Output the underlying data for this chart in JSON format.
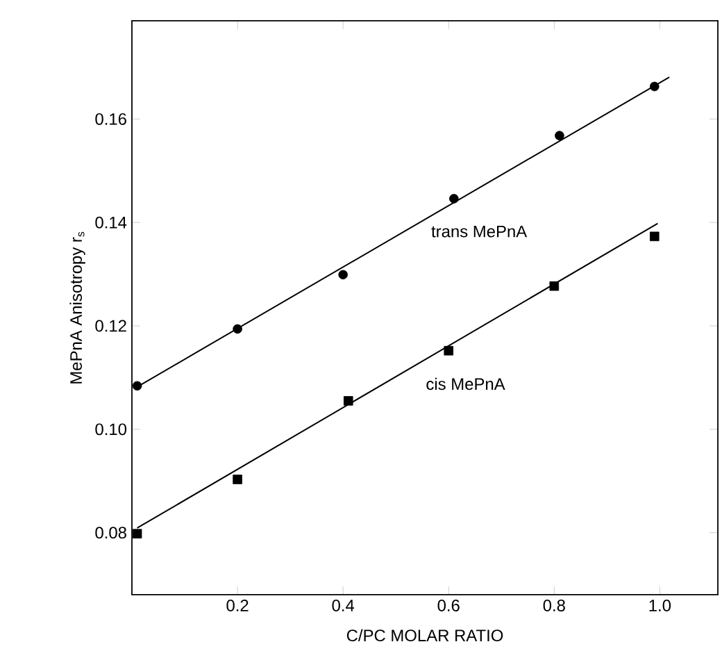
{
  "chart_data": {
    "type": "scatter",
    "xlabel": "C/PC MOLAR RATIO",
    "ylabel": "MePnA Anisotropy r$_{s}$",
    "xlim": [
      0,
      1.11
    ],
    "ylim": [
      0.068,
      0.179
    ],
    "xticks": [
      {
        "value": 0,
        "label": null
      },
      0.2,
      0.4,
      0.6,
      0.8,
      {
        "value": 1.0,
        "label": "1.0"
      }
    ],
    "yticks": [
      0.08,
      {
        "value": 0.1,
        "label": "0.10"
      },
      0.12,
      0.14,
      0.16
    ],
    "grid": false,
    "series": [
      {
        "name": "trans MePnA",
        "type": "scatter",
        "marker": "circle",
        "color": "#000000",
        "x": [
          0.01,
          0.2,
          0.4,
          0.61,
          0.81,
          0.99
        ],
        "values": [
          0.1084,
          0.1194,
          0.1299,
          0.1446,
          0.1568,
          0.1663
        ]
      },
      {
        "type": "line",
        "marker": "none",
        "color": "#000000",
        "x": [
          0.01,
          1.018
        ],
        "values": [
          0.1082,
          0.1681
        ]
      },
      {
        "name": "cis MePnA",
        "type": "scatter",
        "marker": "square",
        "color": "#000000",
        "x": [
          0.01,
          0.2,
          0.41,
          0.6,
          0.8,
          0.99
        ],
        "values": [
          0.0798,
          0.0903,
          0.1055,
          0.1152,
          0.1277,
          0.1373
        ]
      },
      {
        "type": "line",
        "marker": "none",
        "color": "#000000",
        "x": [
          0.01,
          0.996
        ],
        "values": [
          0.0809,
          0.1398
        ]
      }
    ]
  }
}
